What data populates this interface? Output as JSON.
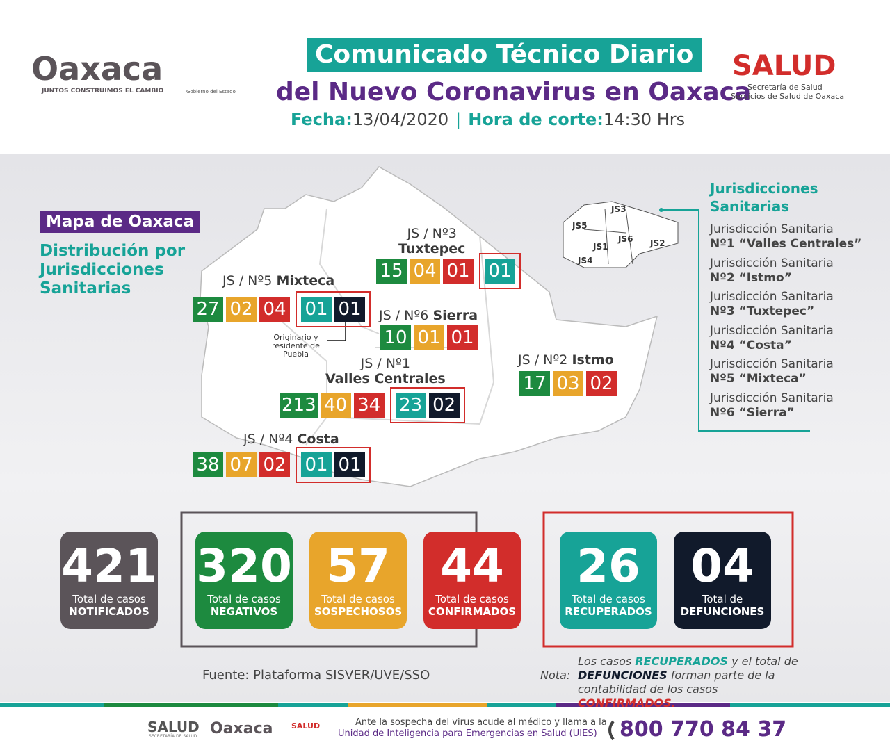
{
  "header": {
    "logo": "Oaxaca",
    "logo_tagline": "JUNTOS CONSTRUIMOS EL CAMBIO",
    "government": "Gobierno del Estado",
    "title_line1": "Comunicado Técnico Diario",
    "title_line2": "del Nuevo Coronavirus en Oaxaca",
    "date_label": "Fecha:",
    "date": "13/04/2020",
    "time_label": "Hora de corte:",
    "time": "14:30 Hrs",
    "salud": "SALUD",
    "salud_line1": "Secretaría de Salud",
    "salud_line2": "Servicios de Salud de Oaxaca"
  },
  "map": {
    "label": "Mapa de Oaxaca",
    "subtitle": [
      "Distribución por",
      "Jurisdicciones",
      "Sanitarias"
    ],
    "jurisdictions": [
      {
        "code": "JS / Nº3",
        "name": "Tuxtepec",
        "values": [
          "15",
          "04",
          "01",
          "01"
        ]
      },
      {
        "code": "JS / Nº5",
        "name": "Mixteca",
        "values": [
          "27",
          "02",
          "04",
          "01",
          "01"
        ],
        "note": "Originario y residente de Puebla"
      },
      {
        "code": "JS / Nº6",
        "name": "Sierra",
        "values": [
          "10",
          "01",
          "01"
        ]
      },
      {
        "code": "JS / Nº2",
        "name": "Istmo",
        "values": [
          "17",
          "03",
          "02"
        ]
      },
      {
        "code": "JS / Nº1",
        "name": "Valles Centrales",
        "values": [
          "213",
          "40",
          "34",
          "23",
          "02"
        ]
      },
      {
        "code": "JS / Nº4",
        "name": "Costa",
        "values": [
          "38",
          "07",
          "02",
          "01",
          "01"
        ]
      }
    ],
    "mini_map_labels": [
      "JS1",
      "JS2",
      "JS3",
      "JS4",
      "JS5",
      "JS6"
    ]
  },
  "legend": {
    "title": "Jurisdicciones Sanitarias",
    "items": [
      [
        "Jurisdicción Sanitaria",
        "Nº1 “Valles Centrales”"
      ],
      [
        "Jurisdicción Sanitaria",
        "Nº2 “Istmo”"
      ],
      [
        "Jurisdicción Sanitaria",
        "Nº3 “Tuxtepec”"
      ],
      [
        "Jurisdicción Sanitaria",
        "Nº4 “Costa”"
      ],
      [
        "Jurisdicción Sanitaria",
        "Nº5 “Mixteca”"
      ],
      [
        "Jurisdicción Sanitaria",
        "Nº6 “Sierra”"
      ]
    ]
  },
  "totals": [
    {
      "value": "421",
      "line1": "Total de casos",
      "line2": "NOTIFICADOS",
      "color": "#5b5459"
    },
    {
      "value": "320",
      "line1": "Total de casos",
      "line2": "NEGATIVOS",
      "color": "#1d8a3f"
    },
    {
      "value": "57",
      "line1": "Total de casos",
      "line2": "SOSPECHOSOS",
      "color": "#e8a52b"
    },
    {
      "value": "44",
      "line1": "Total de casos",
      "line2": "CONFIRMADOS",
      "color": "#d22d2b"
    },
    {
      "value": "26",
      "line1": "Total de casos",
      "line2": "RECUPERADOS",
      "color": "#17a397"
    },
    {
      "value": "04",
      "line1": "Total de",
      "line2": "DEFUNCIONES",
      "color": "#111a2b"
    }
  ],
  "source": "Fuente: Plataforma SISVER/UVE/SSO",
  "note": {
    "label": "Nota:",
    "segments": [
      "Los casos ",
      "RECUPERADOS",
      " y el total de ",
      "DEFUNCIONES",
      " forman parte de la contabilidad de los casos ",
      "CONFIRMADOS."
    ]
  },
  "footer": {
    "salud": "SALUD",
    "salud_sub": "SECRETARÍA DE SALUD",
    "logo": "Oaxaca",
    "salud_small": "SALUD",
    "line1": "Ante la sospecha del virus acude al médico y llama a la",
    "line2": "Unidad de Inteligencia para Emergencias en Salud (UIES)",
    "phone": "800 770 84 37"
  }
}
